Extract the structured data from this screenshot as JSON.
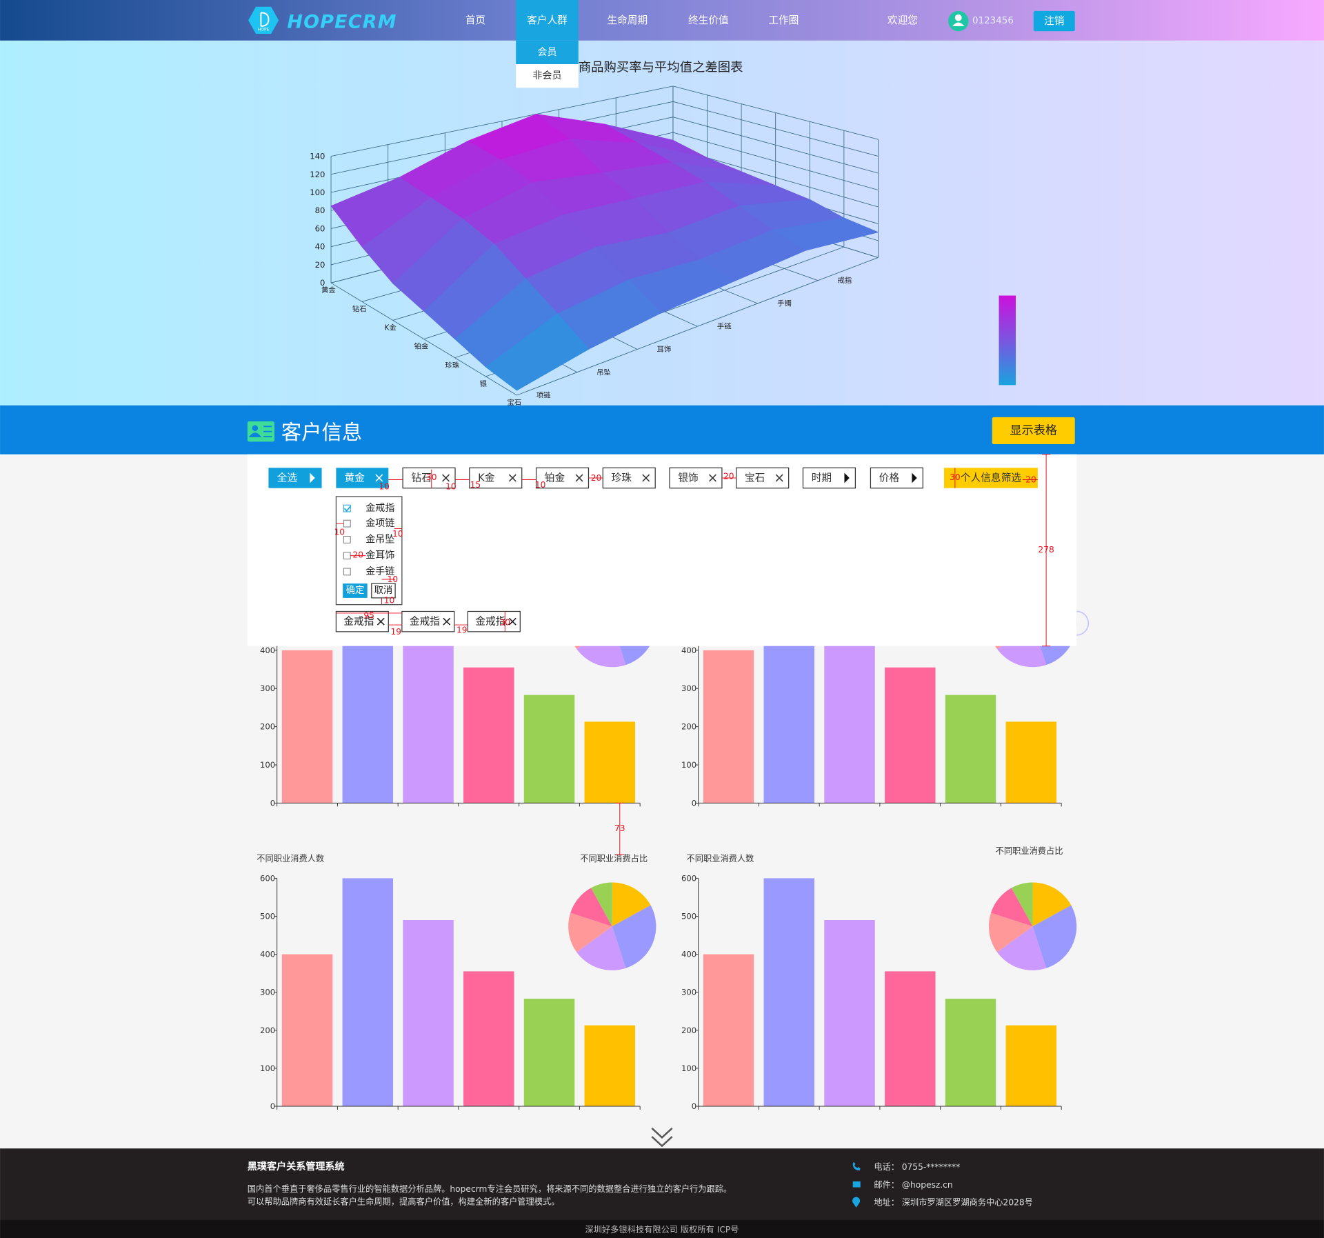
{
  "nav": {
    "logo": "HOPECRM",
    "logo_sub": "HOPE",
    "items": [
      "首页",
      "客户人群",
      "生命周期",
      "终生价值",
      "工作圈"
    ],
    "active": 1,
    "welcome": "欢迎您",
    "user": "0123456",
    "logout": "注销",
    "dropdown": [
      "会员",
      "非会员"
    ]
  },
  "chart_data": [
    {
      "type": "surface3d",
      "title": "商品购买率与平均值之差图表",
      "x_categories": [
        "黄金",
        "钻石",
        "K金",
        "铂金",
        "珍珠",
        "银",
        "宝石"
      ],
      "y_categories": [
        "项链",
        "吊坠",
        "耳饰",
        "手链",
        "手镯",
        "戒指"
      ],
      "zlim": [
        0,
        140
      ],
      "zticks": [
        0,
        20,
        40,
        60,
        80,
        100,
        120,
        140
      ],
      "values": [
        [
          85,
          100,
          125,
          140,
          110,
          70
        ],
        [
          60,
          95,
          120,
          125,
          100,
          60
        ],
        [
          40,
          90,
          110,
          100,
          90,
          55
        ],
        [
          30,
          80,
          90,
          85,
          80,
          50
        ],
        [
          20,
          60,
          70,
          60,
          65,
          45
        ],
        [
          10,
          40,
          50,
          45,
          50,
          35
        ],
        [
          5,
          20,
          30,
          35,
          40,
          30
        ]
      ],
      "colors": [
        "#1aa3e0",
        "#7b55e0",
        "#cc11dd"
      ]
    },
    {
      "type": "bar",
      "categories": [
        null,
        null,
        null,
        null,
        null,
        null
      ],
      "values": [
        400,
        600,
        490,
        355,
        283,
        213
      ],
      "colors": [
        "#ff9999",
        "#9999ff",
        "#cc99ff",
        "#ff6699",
        "#99d155",
        "#ffc000"
      ],
      "ylim": [
        0,
        600
      ],
      "yticks": [
        0,
        100,
        200,
        300,
        400
      ]
    },
    {
      "type": "pie",
      "values": [
        17,
        28,
        20,
        15,
        12,
        8
      ],
      "colors": [
        "#ffc000",
        "#9999ff",
        "#cc99ff",
        "#ff9999",
        "#ff6699",
        "#99d155"
      ]
    },
    {
      "type": "bar",
      "categories": [
        null,
        null,
        null,
        null,
        null,
        null
      ],
      "values": [
        400,
        600,
        490,
        355,
        283,
        213
      ],
      "colors": [
        "#ff9999",
        "#9999ff",
        "#cc99ff",
        "#ff6699",
        "#99d155",
        "#ffc000"
      ],
      "ylim": [
        0,
        600
      ],
      "yticks": [
        0,
        100,
        200,
        300,
        400
      ]
    },
    {
      "type": "pie",
      "values": [
        17,
        28,
        20,
        15,
        12,
        8
      ],
      "colors": [
        "#ffc000",
        "#9999ff",
        "#cc99ff",
        "#ff9999",
        "#ff6699",
        "#99d155"
      ]
    },
    {
      "type": "bar",
      "title": "不同职业消费人数",
      "categories": [
        null,
        null,
        null,
        null,
        null,
        null
      ],
      "values": [
        400,
        600,
        490,
        355,
        283,
        213
      ],
      "colors": [
        "#ff9999",
        "#9999ff",
        "#cc99ff",
        "#ff6699",
        "#99d155",
        "#ffc000"
      ],
      "ylim": [
        0,
        600
      ],
      "yticks": [
        0,
        100,
        200,
        300,
        400,
        500,
        600
      ]
    },
    {
      "type": "pie",
      "title": "不同职业消费占比",
      "values": [
        17,
        28,
        20,
        15,
        12,
        8
      ],
      "colors": [
        "#ffc000",
        "#9999ff",
        "#cc99ff",
        "#ff9999",
        "#ff6699",
        "#99d155"
      ]
    },
    {
      "type": "bar",
      "title": "不同职业消费人数",
      "categories": [
        null,
        null,
        null,
        null,
        null,
        null
      ],
      "values": [
        400,
        600,
        490,
        355,
        283,
        213
      ],
      "colors": [
        "#ff9999",
        "#9999ff",
        "#cc99ff",
        "#ff6699",
        "#99d155",
        "#ffc000"
      ],
      "ylim": [
        0,
        600
      ],
      "yticks": [
        0,
        100,
        200,
        300,
        400,
        500,
        600
      ]
    },
    {
      "type": "pie",
      "title": "不同职业消费占比",
      "values": [
        17,
        28,
        20,
        15,
        12,
        8
      ],
      "colors": [
        "#ffc000",
        "#9999ff",
        "#cc99ff",
        "#ff9999",
        "#ff6699",
        "#99d155"
      ]
    }
  ],
  "section": {
    "title": "客户信息",
    "button": "显示表格"
  },
  "filters": {
    "chips": [
      {
        "label": "全选",
        "style": "blue-arrow"
      },
      {
        "label": "黄金",
        "style": "blue-close"
      },
      {
        "label": "钻石",
        "style": "close"
      },
      {
        "label": "K金",
        "style": "close"
      },
      {
        "label": "铂金",
        "style": "close"
      },
      {
        "label": "珍珠",
        "style": "close"
      },
      {
        "label": "银饰",
        "style": "close"
      },
      {
        "label": "宝石",
        "style": "close"
      },
      {
        "label": "时期",
        "style": "arrow"
      },
      {
        "label": "价格",
        "style": "arrow"
      },
      {
        "label": "个人信息筛选",
        "style": "yellow"
      }
    ],
    "options": [
      "金戒指",
      "金项链",
      "金吊坠",
      "金耳饰",
      "金手链"
    ],
    "checked": [
      true,
      false,
      false,
      false,
      false
    ],
    "confirm": "确定",
    "cancel": "取消",
    "tags": [
      "金戒指",
      "金戒指",
      "金戒指"
    ]
  },
  "annotations": [
    "10",
    "30",
    "10",
    "15",
    "10",
    "20",
    "20",
    "30",
    "20",
    "10",
    "10",
    "20",
    "10",
    "10",
    "95",
    "19",
    "19",
    "30",
    "278",
    "73"
  ],
  "footer": {
    "title": "黑璞客户关系管理系统",
    "lines": [
      "国内首个垂直于奢侈品零售行业的智能数据分析品牌。hopecrm专注会员研究，将来源不同的数据整合进行独立的客户行为跟踪。",
      "可以帮助品牌商有效延长客户生命周期，提高客户价值，构建全新的客户管理模式。"
    ],
    "contacts": [
      {
        "label": "电话：",
        "value": "0755-********"
      },
      {
        "label": "邮件：",
        "value": "@hopesz.cn"
      },
      {
        "label": "地址：",
        "value": "深圳市罗湖区罗湖商务中心2028号"
      }
    ],
    "copyright": "深圳好多银科技有限公司 版权所有 ICP号"
  }
}
